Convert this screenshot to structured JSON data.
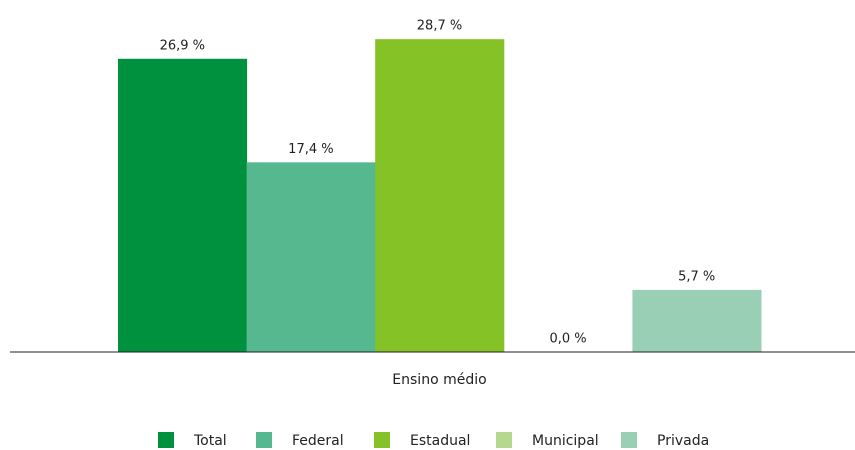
{
  "chart_data": {
    "type": "bar",
    "categories": [
      "Ensino médio"
    ],
    "series": [
      {
        "name": "Total",
        "color": "#00913f",
        "values": [
          26.9
        ],
        "value_labels": [
          "26,9 %"
        ]
      },
      {
        "name": "Federal",
        "color": "#55b88e",
        "values": [
          17.4
        ],
        "value_labels": [
          "17,4 %"
        ]
      },
      {
        "name": "Estadual",
        "color": "#84c225",
        "values": [
          28.7
        ],
        "value_labels": [
          "28,7 %"
        ]
      },
      {
        "name": "Municipal",
        "color": "#b6d88e",
        "values": [
          0.0
        ],
        "value_labels": [
          "0,0 %"
        ]
      },
      {
        "name": "Privada",
        "color": "#99d0b5",
        "values": [
          5.7
        ],
        "value_labels": [
          "5,7 %"
        ]
      }
    ],
    "ylim": [
      0,
      30
    ]
  }
}
